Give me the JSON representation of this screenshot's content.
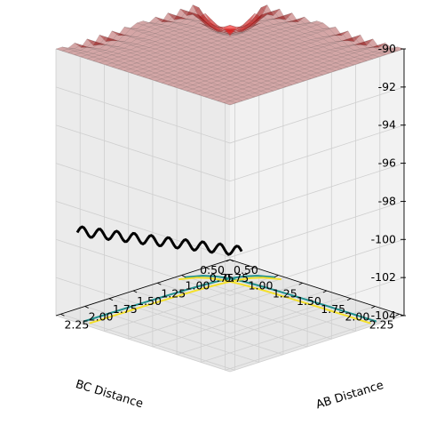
{
  "chart_data": {
    "type": "surface3d",
    "title": "",
    "xlabel": "AB Distance",
    "ylabel": "BC Distance",
    "zlabel": "",
    "x_ticks": [
      "0.50",
      "0.75",
      "1.00",
      "1.25",
      "1.50",
      "1.75",
      "2.00",
      "2.25"
    ],
    "y_ticks": [
      "0.50",
      "0.75",
      "1.00",
      "1.25",
      "1.50",
      "1.75",
      "2.00",
      "2.25"
    ],
    "z_ticks": [
      "-104",
      "-102",
      "-100",
      "-98",
      "-96",
      "-94",
      "-92",
      "-90"
    ],
    "xlim": [
      0.5,
      2.3
    ],
    "ylim": [
      0.5,
      2.3
    ],
    "zlim": [
      -104,
      -90
    ],
    "colormap": "jet",
    "surface_alpha": 0.35,
    "grid": true,
    "contour_levels": [
      -103.6,
      -103.0
    ],
    "contour_colors": [
      "#20908d",
      "#f4e02b"
    ],
    "trajectory": {
      "color": "#000000",
      "note_points": [
        {
          "x": 0.72,
          "y": 2.28,
          "z": -104
        },
        {
          "x": 0.98,
          "y": 1.1,
          "z": -101.8
        },
        {
          "x": 2.25,
          "y": 0.72,
          "z": -99.2
        }
      ]
    }
  }
}
